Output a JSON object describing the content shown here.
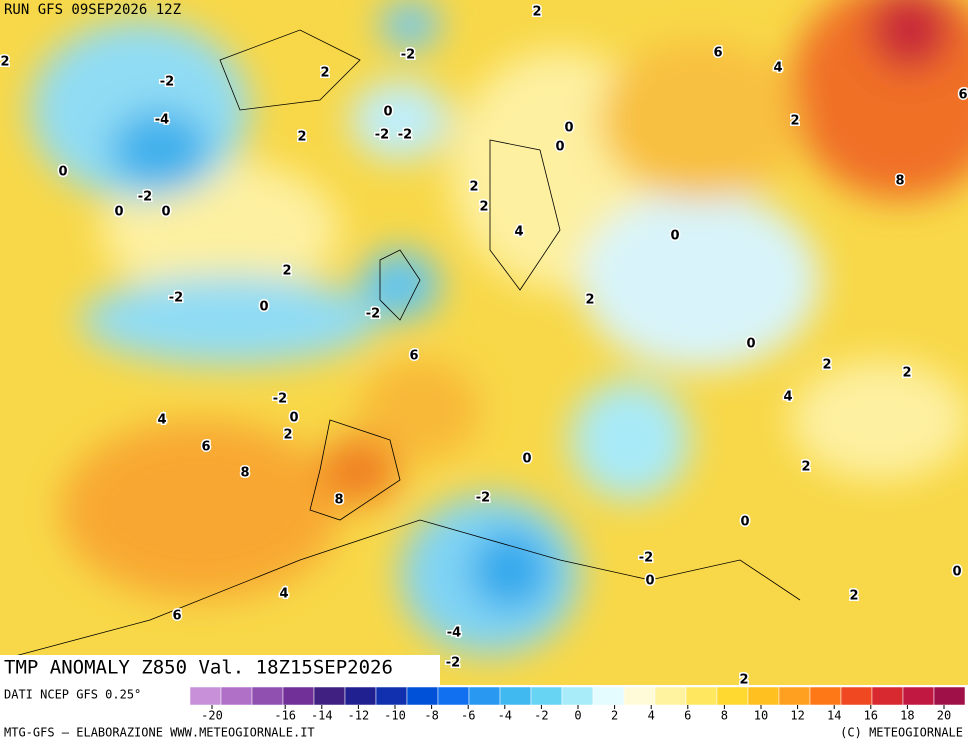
{
  "header": {
    "run": "RUN GFS 09SEP2026 12Z"
  },
  "map": {
    "title": "TMP ANOMALY Z850 Val. 18Z15SEP2026",
    "contour_labels": [
      2,
      -2,
      -4,
      0,
      -2,
      0,
      0,
      2,
      -2,
      0,
      -2,
      -2,
      2,
      2,
      6,
      4,
      2,
      0,
      0,
      8,
      6,
      2,
      2,
      4,
      0,
      2,
      -2,
      0,
      -2,
      2,
      6,
      0,
      2,
      2,
      4,
      -2,
      4,
      0,
      2,
      6,
      0,
      8,
      2,
      8,
      -2,
      0,
      -2,
      0,
      0,
      4,
      2,
      6,
      -4,
      -2,
      2
    ]
  },
  "colorbar": {
    "source": "DATI NCEP GFS 0.25°",
    "colors": [
      "#c890d8",
      "#b070c8",
      "#9050b0",
      "#703098",
      "#402080",
      "#202090",
      "#1030b0",
      "#0050d8",
      "#1070f0",
      "#2898f0",
      "#40b8f0",
      "#68d4f4",
      "#a8ecfa",
      "#e4fbff",
      "#fffbd8",
      "#fff3a0",
      "#ffe860",
      "#ffd830",
      "#ffc020",
      "#ffa020",
      "#ff7818",
      "#f04820",
      "#d82830",
      "#c01840",
      "#a01048"
    ],
    "ticks": [
      -20,
      -16,
      -14,
      -12,
      -10,
      -8,
      -6,
      -4,
      -2,
      0,
      2,
      4,
      6,
      8,
      10,
      12,
      14,
      16,
      18,
      20
    ]
  },
  "footer": {
    "left": "MTG-GFS – ELABORAZIONE WWW.METEOGIORNALE.IT",
    "right": "(C) METEOGIORNALE"
  }
}
